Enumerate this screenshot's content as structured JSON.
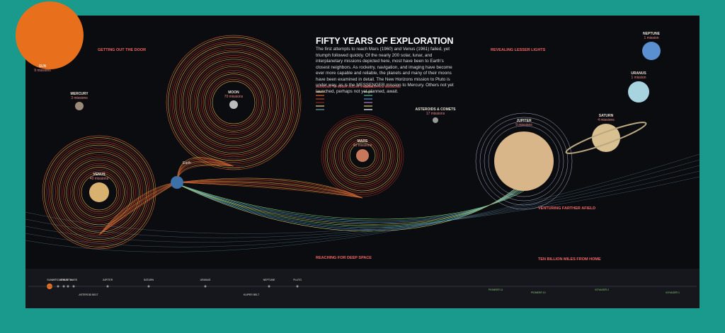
{
  "title": "FIFTY YEARS OF EXPLORATION",
  "intro": "The first attempts to reach Mars (1960) and Venus (1961) failed, yet triumph followed quickly. Of the nearly 200 solar, lunar, and interplanetary missions depicted here, most have been to Earth's closest neighbors. As rocketry, navigation, and imaging have become ever more capable and reliable, the planets and many of their moons have been examined in detail. The New Horizons mission to Pluto is under way, as is the MESSENGER mission to Mercury. Others not yet launched, perhaps not yet planned, await.",
  "legend": {
    "inner": "MISSIONS TO INNER SOLAR SYSTEM",
    "deep": "DEEP SPACE MISSIONS"
  },
  "sections": [
    "GETTING OUT THE DOOR",
    "REVEALING LESSER LIGHTS",
    "REACHING FOR DEEP SPACE",
    "VENTURING FARTHER AFIELD",
    "TEN BILLION MILES FROM HOME"
  ],
  "bodies": [
    {
      "name": "SUN",
      "missions": "9 missions"
    },
    {
      "name": "MERCURY",
      "missions": "3 missions"
    },
    {
      "name": "VENUS",
      "missions": "40 missions"
    },
    {
      "name": "MOON",
      "missions": "70 missions"
    },
    {
      "name": "MARS",
      "missions": "40 missions"
    },
    {
      "name": "ASTEROIDS & COMETS",
      "missions": "17 missions"
    },
    {
      "name": "JUPITER",
      "missions": "9 missions"
    },
    {
      "name": "SATURN",
      "missions": "4 missions"
    },
    {
      "name": "URANUS",
      "missions": "1 mission"
    },
    {
      "name": "NEPTUNE",
      "missions": "1 mission"
    }
  ],
  "earth": "Earth",
  "scale": [
    "SUN",
    "MERCURY",
    "VENUS",
    "EARTH",
    "MARS",
    "ASTEROID BELT",
    "JUPITER",
    "SATURN",
    "URANUS",
    "NEPTUNE",
    "PLUTO",
    "KUIPER BELT"
  ],
  "probes": [
    "PIONEER 11",
    "PIONEER 10",
    "VOYAGER 2",
    "VOYAGER 1"
  ]
}
